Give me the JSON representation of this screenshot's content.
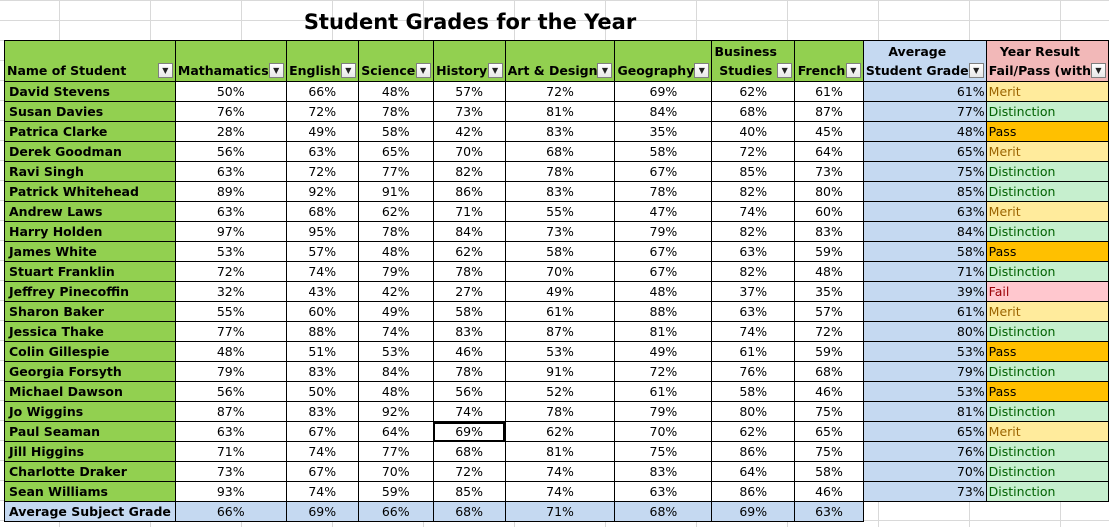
{
  "title": "Student Grades for the Year",
  "headers": {
    "name": "Name of Student",
    "subjects": [
      {
        "l1": "",
        "l2": "Mathamatics"
      },
      {
        "l1": "",
        "l2": "English"
      },
      {
        "l1": "",
        "l2": "Science"
      },
      {
        "l1": "",
        "l2": "History"
      },
      {
        "l1": "",
        "l2": "Art & Design"
      },
      {
        "l1": "",
        "l2": "Geography"
      },
      {
        "l1": "Business",
        "l2": "Studies"
      },
      {
        "l1": "",
        "l2": "French"
      }
    ],
    "avg_l1": "Average",
    "avg_l2": "Student Grade",
    "res_l1": "Year Result",
    "res_l2": "Fail/Pass (with"
  },
  "rows": [
    {
      "name": "David Stevens",
      "grades": [
        "50%",
        "66%",
        "48%",
        "57%",
        "72%",
        "69%",
        "62%",
        "61%"
      ],
      "avg": "61%",
      "result": "Merit"
    },
    {
      "name": "Susan Davies",
      "grades": [
        "76%",
        "72%",
        "78%",
        "73%",
        "81%",
        "84%",
        "68%",
        "87%"
      ],
      "avg": "77%",
      "result": "Distinction"
    },
    {
      "name": "Patrica Clarke",
      "grades": [
        "28%",
        "49%",
        "58%",
        "42%",
        "83%",
        "35%",
        "40%",
        "45%"
      ],
      "avg": "48%",
      "result": "Pass"
    },
    {
      "name": "Derek Goodman",
      "grades": [
        "56%",
        "63%",
        "65%",
        "70%",
        "68%",
        "58%",
        "72%",
        "64%"
      ],
      "avg": "65%",
      "result": "Merit"
    },
    {
      "name": "Ravi Singh",
      "grades": [
        "63%",
        "72%",
        "77%",
        "82%",
        "78%",
        "67%",
        "85%",
        "73%"
      ],
      "avg": "75%",
      "result": "Distinction"
    },
    {
      "name": "Patrick Whitehead",
      "grades": [
        "89%",
        "92%",
        "91%",
        "86%",
        "83%",
        "78%",
        "82%",
        "80%"
      ],
      "avg": "85%",
      "result": "Distinction"
    },
    {
      "name": "Andrew Laws",
      "grades": [
        "63%",
        "68%",
        "62%",
        "71%",
        "55%",
        "47%",
        "74%",
        "60%"
      ],
      "avg": "63%",
      "result": "Merit"
    },
    {
      "name": "Harry Holden",
      "grades": [
        "97%",
        "95%",
        "78%",
        "84%",
        "73%",
        "79%",
        "82%",
        "83%"
      ],
      "avg": "84%",
      "result": "Distinction"
    },
    {
      "name": "James White",
      "grades": [
        "53%",
        "57%",
        "48%",
        "62%",
        "58%",
        "67%",
        "63%",
        "59%"
      ],
      "avg": "58%",
      "result": "Pass"
    },
    {
      "name": "Stuart Franklin",
      "grades": [
        "72%",
        "74%",
        "79%",
        "78%",
        "70%",
        "67%",
        "82%",
        "48%"
      ],
      "avg": "71%",
      "result": "Distinction"
    },
    {
      "name": "Jeffrey Pinecoffin",
      "grades": [
        "32%",
        "43%",
        "42%",
        "27%",
        "49%",
        "48%",
        "37%",
        "35%"
      ],
      "avg": "39%",
      "result": "Fail"
    },
    {
      "name": "Sharon Baker",
      "grades": [
        "55%",
        "60%",
        "49%",
        "58%",
        "61%",
        "88%",
        "63%",
        "57%"
      ],
      "avg": "61%",
      "result": "Merit"
    },
    {
      "name": "Jessica Thake",
      "grades": [
        "77%",
        "88%",
        "74%",
        "83%",
        "87%",
        "81%",
        "74%",
        "72%"
      ],
      "avg": "80%",
      "result": "Distinction"
    },
    {
      "name": "Colin Gillespie",
      "grades": [
        "48%",
        "51%",
        "53%",
        "46%",
        "53%",
        "49%",
        "61%",
        "59%"
      ],
      "avg": "53%",
      "result": "Pass"
    },
    {
      "name": "Georgia Forsyth",
      "grades": [
        "79%",
        "83%",
        "84%",
        "78%",
        "91%",
        "72%",
        "76%",
        "68%"
      ],
      "avg": "79%",
      "result": "Distinction"
    },
    {
      "name": "Michael Dawson",
      "grades": [
        "56%",
        "50%",
        "48%",
        "56%",
        "52%",
        "61%",
        "58%",
        "46%"
      ],
      "avg": "53%",
      "result": "Pass"
    },
    {
      "name": "Jo Wiggins",
      "grades": [
        "87%",
        "83%",
        "92%",
        "74%",
        "78%",
        "79%",
        "80%",
        "75%"
      ],
      "avg": "81%",
      "result": "Distinction"
    },
    {
      "name": "Paul Seaman",
      "grades": [
        "63%",
        "67%",
        "64%",
        "69%",
        "62%",
        "70%",
        "62%",
        "65%"
      ],
      "avg": "65%",
      "result": "Merit"
    },
    {
      "name": "Jill Higgins",
      "grades": [
        "71%",
        "74%",
        "77%",
        "68%",
        "81%",
        "75%",
        "86%",
        "75%"
      ],
      "avg": "76%",
      "result": "Distinction"
    },
    {
      "name": "Charlotte Draker",
      "grades": [
        "73%",
        "67%",
        "70%",
        "72%",
        "74%",
        "83%",
        "64%",
        "58%"
      ],
      "avg": "70%",
      "result": "Distinction"
    },
    {
      "name": "Sean Williams",
      "grades": [
        "93%",
        "74%",
        "59%",
        "85%",
        "74%",
        "63%",
        "86%",
        "46%"
      ],
      "avg": "73%",
      "result": "Distinction"
    }
  ],
  "footer": {
    "label": "Average Subject Grade",
    "values": [
      "66%",
      "69%",
      "66%",
      "68%",
      "71%",
      "68%",
      "69%",
      "63%"
    ]
  },
  "selected_cell": {
    "row": 17,
    "col": 3
  },
  "colors": {
    "header_green": "#92d050",
    "avg_blue": "#c5d9f1",
    "result_header_pink": "#f2b8b8",
    "merit_fill": "#ffeb9c",
    "distinction_fill": "#c6efce",
    "pass_fill": "#ffc000",
    "fail_fill": "#ffc7ce"
  },
  "icons": {
    "filter": "dropdown-filter-icon"
  }
}
